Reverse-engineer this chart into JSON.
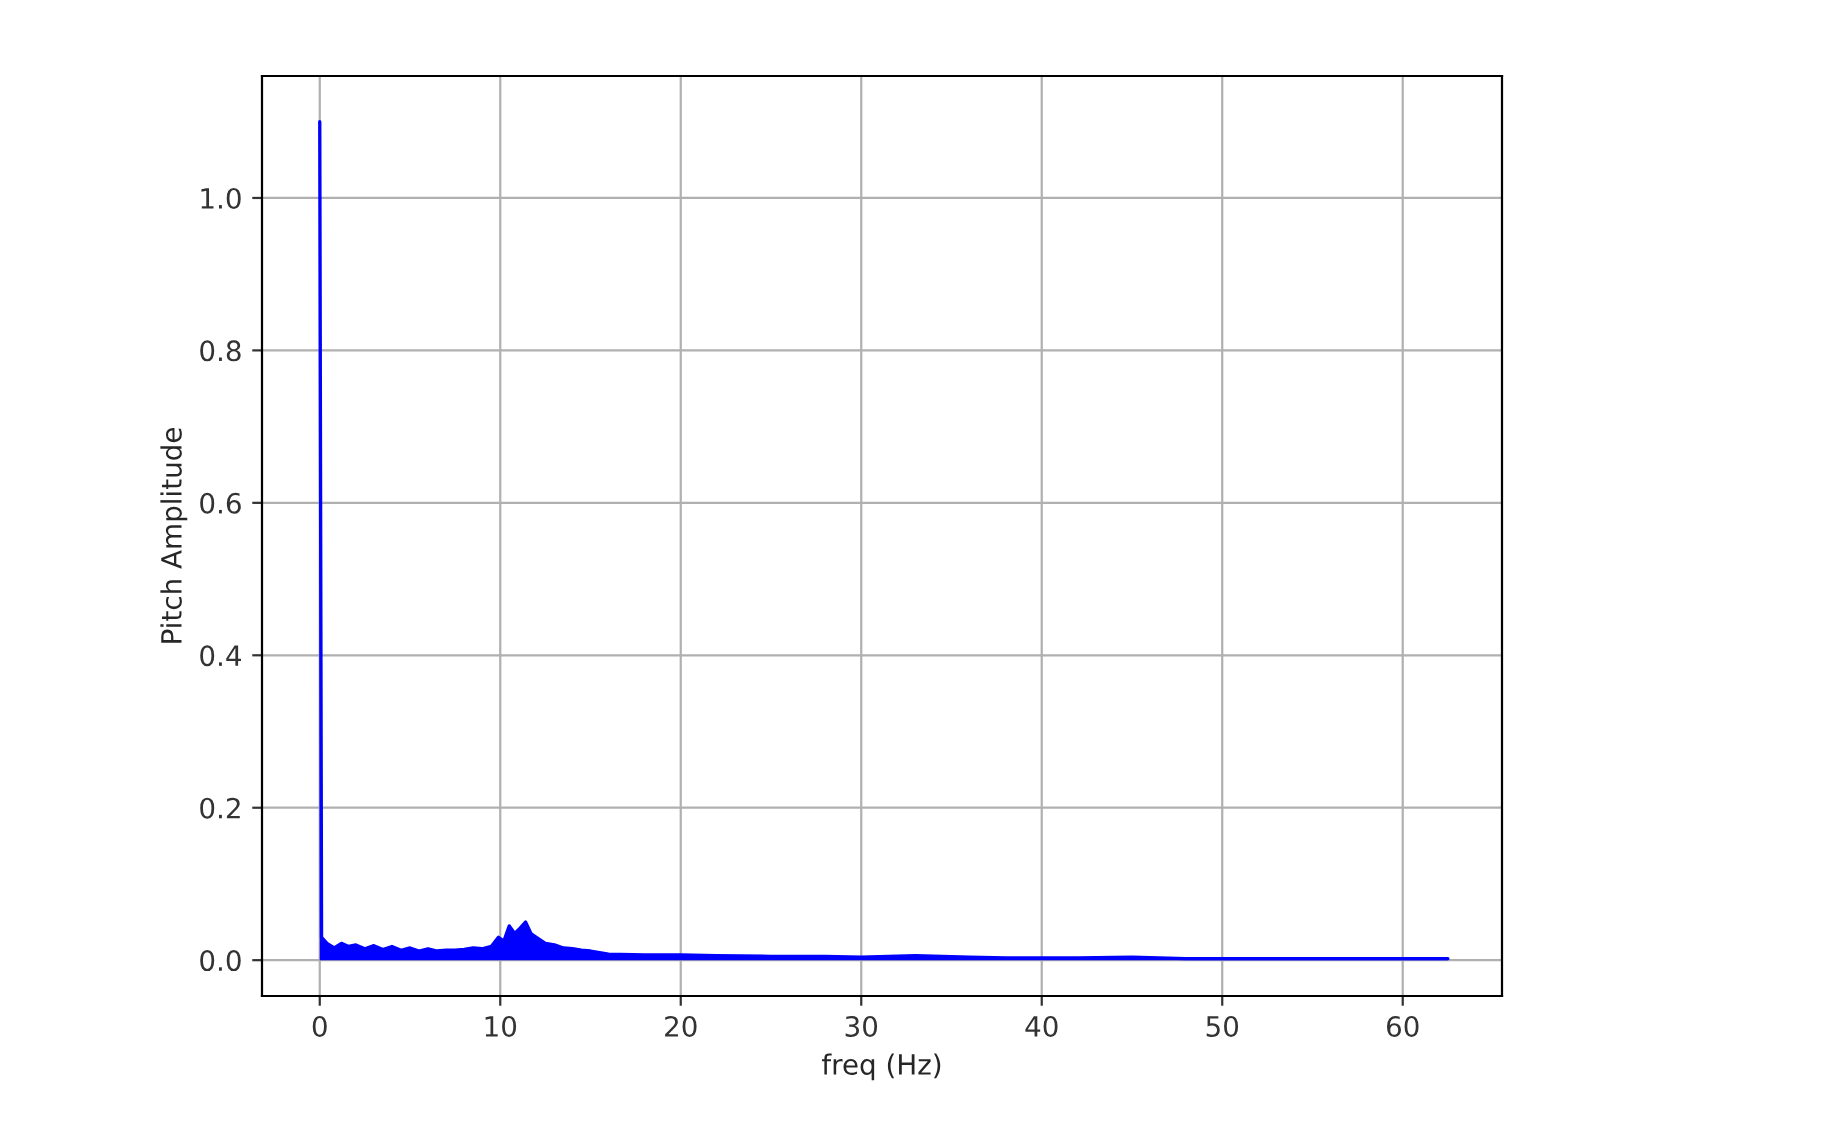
{
  "chart_data": {
    "type": "area",
    "xlabel": "freq (Hz)",
    "ylabel": "Pitch Amplitude",
    "xlim": [
      -3.2,
      65.5
    ],
    "ylim": [
      -0.047,
      1.16
    ],
    "xticks": [
      0,
      10,
      20,
      30,
      40,
      50,
      60
    ],
    "yticks": [
      {
        "value": 0,
        "label": "0.0"
      },
      {
        "value": 0.2,
        "label": "0.2"
      },
      {
        "value": 0.4,
        "label": "0.4"
      },
      {
        "value": 0.6,
        "label": "0.6"
      },
      {
        "value": 0.8,
        "label": "0.8"
      },
      {
        "value": 1.0,
        "label": "1.0"
      }
    ],
    "grid": true,
    "series": [
      {
        "color": "#0000ff",
        "x": [
          0,
          0.1,
          0.4,
          0.8,
          1.2,
          1.6,
          2.0,
          2.5,
          3.0,
          3.5,
          4.0,
          4.5,
          5.0,
          5.5,
          6.0,
          6.5,
          7.0,
          7.5,
          8.0,
          8.5,
          9.0,
          9.5,
          9.9,
          10.2,
          10.5,
          10.8,
          11.1,
          11.4,
          11.7,
          12.0,
          12.5,
          13.0,
          13.5,
          14.0,
          14.5,
          15.0,
          16,
          18,
          20,
          22,
          25,
          28,
          30,
          33,
          36,
          38,
          40,
          42,
          45,
          48,
          50,
          55,
          60,
          62.5
        ],
        "values": [
          1.1,
          0.03,
          0.022,
          0.016,
          0.022,
          0.018,
          0.02,
          0.015,
          0.019,
          0.014,
          0.018,
          0.013,
          0.016,
          0.012,
          0.015,
          0.012,
          0.013,
          0.013,
          0.014,
          0.016,
          0.015,
          0.018,
          0.03,
          0.025,
          0.045,
          0.035,
          0.042,
          0.05,
          0.035,
          0.03,
          0.022,
          0.02,
          0.016,
          0.015,
          0.013,
          0.012,
          0.008,
          0.007,
          0.007,
          0.006,
          0.005,
          0.005,
          0.004,
          0.006,
          0.004,
          0.003,
          0.003,
          0.003,
          0.004,
          0.002,
          0.002,
          0.002,
          0.002,
          0.002
        ]
      }
    ]
  }
}
